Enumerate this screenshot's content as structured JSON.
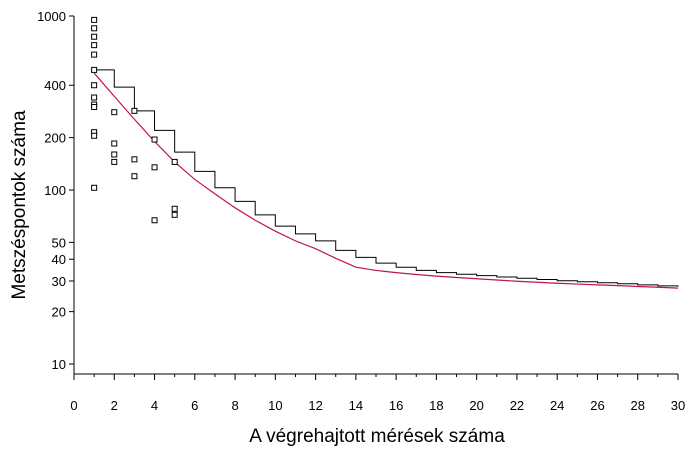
{
  "chart_data": {
    "type": "scatter",
    "title": "",
    "xlabel": "A végrehajtott mérések száma",
    "ylabel": "Metszéspontok száma",
    "xlim": [
      0,
      30
    ],
    "ylim": [
      8,
      1000
    ],
    "yscale": "log",
    "x_ticks": [
      0,
      2,
      4,
      6,
      8,
      10,
      12,
      14,
      16,
      18,
      20,
      22,
      24,
      26,
      28,
      30
    ],
    "y_ticks": [
      10,
      20,
      30,
      40,
      50,
      100,
      200,
      400,
      1000
    ],
    "grid": false,
    "legend": "none",
    "series": [
      {
        "type": "scatter",
        "marker": "square",
        "points": [
          [
            1,
            950
          ],
          [
            1,
            850
          ],
          [
            1,
            760
          ],
          [
            1,
            680
          ],
          [
            1,
            600
          ],
          [
            1,
            490
          ],
          [
            1,
            400
          ],
          [
            1,
            340
          ],
          [
            1,
            310
          ],
          [
            1,
            300
          ],
          [
            1,
            215
          ],
          [
            1,
            205
          ],
          [
            1,
            103
          ],
          [
            2,
            280
          ],
          [
            2,
            185
          ],
          [
            2,
            160
          ],
          [
            2,
            145
          ],
          [
            3,
            285
          ],
          [
            3,
            150
          ],
          [
            3,
            120
          ],
          [
            4,
            195
          ],
          [
            4,
            135
          ],
          [
            4,
            67
          ],
          [
            5,
            145
          ],
          [
            5,
            78
          ],
          [
            5,
            72
          ]
        ]
      },
      {
        "type": "step",
        "color": "#000000",
        "x": [
          1,
          2,
          3,
          4,
          5,
          6,
          7,
          8,
          9,
          10,
          11,
          12,
          13,
          14,
          15,
          16,
          17,
          18,
          19,
          20,
          21,
          22,
          23,
          24,
          25,
          26,
          27,
          28,
          29,
          30
        ],
        "y": [
          490,
          390,
          285,
          220,
          165,
          128,
          103,
          86,
          72,
          62,
          56,
          51,
          45,
          41,
          38,
          36,
          34.5,
          33.5,
          32.8,
          32.2,
          31.6,
          31.1,
          30.6,
          30.1,
          29.7,
          29.3,
          28.9,
          28.5,
          28.1,
          27.8
        ]
      },
      {
        "type": "line",
        "color": "#c0154a",
        "x": [
          1,
          2,
          3,
          4,
          5,
          6,
          7,
          8,
          9,
          10,
          11,
          12,
          13,
          14,
          15,
          16,
          17,
          18,
          19,
          20,
          21,
          22,
          23,
          24,
          25,
          26,
          27,
          28,
          29,
          30
        ],
        "y": [
          470,
          345,
          255,
          190,
          145,
          115,
          95,
          79,
          67,
          58,
          51,
          46,
          40.5,
          36,
          34.5,
          33.5,
          32.7,
          32.0,
          31.4,
          30.9,
          30.4,
          29.9,
          29.5,
          29.1,
          28.8,
          28.5,
          28.2,
          27.9,
          27.6,
          27.3
        ]
      }
    ]
  }
}
